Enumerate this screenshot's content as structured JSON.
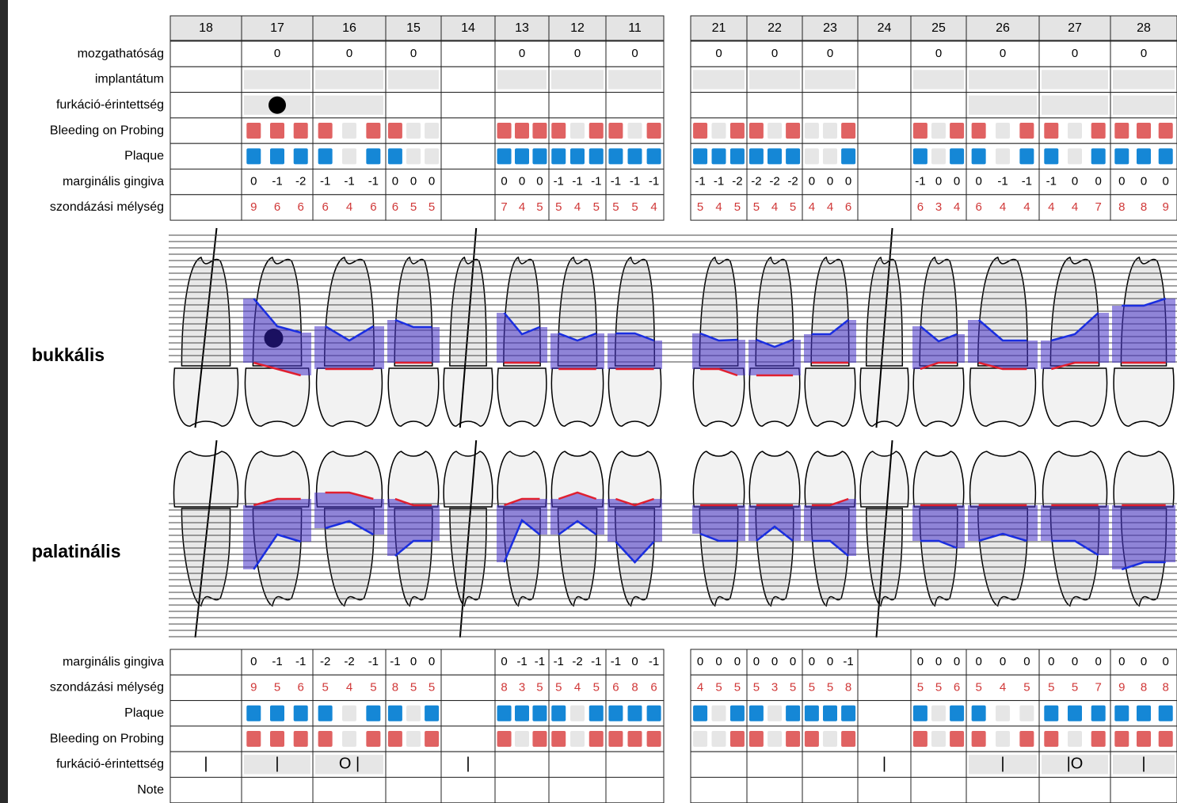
{
  "row_labels": {
    "mobility": "mozgathatóság",
    "implant": "implantátum",
    "furcation": "furkáció-érintettség",
    "bleeding": "Bleeding on Probing",
    "plaque": "Plaque",
    "gingiva": "marginális gingiva",
    "probing": "szondázási mélység",
    "note": "Note"
  },
  "side_labels": {
    "buccal": "bukkális",
    "palatal": "palatinális"
  },
  "teeth": [
    {
      "number": 18,
      "mobility": null,
      "furcation": null,
      "buccal": null,
      "palatal": {
        "furcation": "|"
      }
    },
    {
      "number": 17,
      "mobility": 0,
      "furcation": 1,
      "buccal": {
        "bleeding": [
          true,
          true,
          true
        ],
        "plaque": [
          true,
          true,
          true
        ],
        "gingiva": [
          0,
          -1,
          -2
        ],
        "probing": [
          9,
          6,
          6
        ]
      },
      "palatal": {
        "gingiva": [
          0,
          -1,
          -1
        ],
        "probing": [
          9,
          5,
          6
        ],
        "plaque": [
          true,
          true,
          true
        ],
        "bleeding": [
          true,
          true,
          true
        ],
        "furcation": "|"
      }
    },
    {
      "number": 16,
      "mobility": 0,
      "furcation": 0,
      "buccal": {
        "bleeding": [
          true,
          false,
          true
        ],
        "plaque": [
          true,
          false,
          true
        ],
        "gingiva": [
          -1,
          -1,
          -1
        ],
        "probing": [
          6,
          4,
          6
        ]
      },
      "palatal": {
        "gingiva": [
          -2,
          -2,
          -1
        ],
        "probing": [
          5,
          4,
          5
        ],
        "plaque": [
          true,
          false,
          true
        ],
        "bleeding": [
          true,
          false,
          true
        ],
        "furcation": "O |"
      }
    },
    {
      "number": 15,
      "mobility": 0,
      "furcation": null,
      "buccal": {
        "bleeding": [
          true,
          false,
          false
        ],
        "plaque": [
          true,
          false,
          false
        ],
        "gingiva": [
          0,
          0,
          0
        ],
        "probing": [
          6,
          5,
          5
        ]
      },
      "palatal": {
        "gingiva": [
          -1,
          0,
          0
        ],
        "probing": [
          8,
          5,
          5
        ],
        "plaque": [
          true,
          false,
          true
        ],
        "bleeding": [
          true,
          false,
          true
        ],
        "furcation": null
      }
    },
    {
      "number": 14,
      "mobility": null,
      "furcation": null,
      "buccal": null,
      "palatal": {
        "furcation": "|"
      }
    },
    {
      "number": 13,
      "mobility": 0,
      "furcation": null,
      "buccal": {
        "bleeding": [
          true,
          true,
          true
        ],
        "plaque": [
          true,
          true,
          true
        ],
        "gingiva": [
          0,
          0,
          0
        ],
        "probing": [
          7,
          4,
          5
        ]
      },
      "palatal": {
        "gingiva": [
          0,
          -1,
          -1
        ],
        "probing": [
          8,
          3,
          5
        ],
        "plaque": [
          true,
          true,
          true
        ],
        "bleeding": [
          true,
          false,
          true
        ],
        "furcation": null
      }
    },
    {
      "number": 12,
      "mobility": 0,
      "furcation": null,
      "buccal": {
        "bleeding": [
          true,
          false,
          true
        ],
        "plaque": [
          true,
          true,
          true
        ],
        "gingiva": [
          -1,
          -1,
          -1
        ],
        "probing": [
          5,
          4,
          5
        ]
      },
      "palatal": {
        "gingiva": [
          -1,
          -2,
          -1
        ],
        "probing": [
          5,
          4,
          5
        ],
        "plaque": [
          true,
          false,
          true
        ],
        "bleeding": [
          true,
          false,
          true
        ],
        "furcation": null
      }
    },
    {
      "number": 11,
      "mobility": 0,
      "furcation": null,
      "buccal": {
        "bleeding": [
          true,
          false,
          true
        ],
        "plaque": [
          true,
          true,
          true
        ],
        "gingiva": [
          -1,
          -1,
          -1
        ],
        "probing": [
          5,
          5,
          4
        ]
      },
      "palatal": {
        "gingiva": [
          -1,
          0,
          -1
        ],
        "probing": [
          6,
          8,
          6
        ],
        "plaque": [
          true,
          true,
          true
        ],
        "bleeding": [
          true,
          true,
          true
        ],
        "furcation": null
      }
    },
    {
      "number": 21,
      "mobility": 0,
      "furcation": null,
      "buccal": {
        "bleeding": [
          true,
          false,
          true
        ],
        "plaque": [
          true,
          true,
          true
        ],
        "gingiva": [
          -1,
          -1,
          -2
        ],
        "probing": [
          5,
          4,
          5
        ]
      },
      "palatal": {
        "gingiva": [
          0,
          0,
          0
        ],
        "probing": [
          4,
          5,
          5
        ],
        "plaque": [
          true,
          false,
          true
        ],
        "bleeding": [
          false,
          false,
          true
        ],
        "furcation": null
      }
    },
    {
      "number": 22,
      "mobility": 0,
      "furcation": null,
      "buccal": {
        "bleeding": [
          true,
          false,
          true
        ],
        "plaque": [
          true,
          true,
          true
        ],
        "gingiva": [
          -2,
          -2,
          -2
        ],
        "probing": [
          5,
          4,
          5
        ]
      },
      "palatal": {
        "gingiva": [
          0,
          0,
          0
        ],
        "probing": [
          5,
          3,
          5
        ],
        "plaque": [
          true,
          false,
          true
        ],
        "bleeding": [
          true,
          false,
          true
        ],
        "furcation": null
      }
    },
    {
      "number": 23,
      "mobility": 0,
      "furcation": null,
      "buccal": {
        "bleeding": [
          false,
          false,
          true
        ],
        "plaque": [
          false,
          false,
          true
        ],
        "gingiva": [
          0,
          0,
          0
        ],
        "probing": [
          4,
          4,
          6
        ]
      },
      "palatal": {
        "gingiva": [
          0,
          0,
          -1
        ],
        "probing": [
          5,
          5,
          8
        ],
        "plaque": [
          true,
          true,
          true
        ],
        "bleeding": [
          true,
          false,
          true
        ],
        "furcation": null
      }
    },
    {
      "number": 24,
      "mobility": null,
      "furcation": null,
      "buccal": null,
      "palatal": {
        "furcation": "|"
      }
    },
    {
      "number": 25,
      "mobility": 0,
      "furcation": null,
      "buccal": {
        "bleeding": [
          true,
          false,
          true
        ],
        "plaque": [
          true,
          false,
          true
        ],
        "gingiva": [
          -1,
          0,
          0
        ],
        "probing": [
          6,
          3,
          4
        ]
      },
      "palatal": {
        "gingiva": [
          0,
          0,
          0
        ],
        "probing": [
          5,
          5,
          6
        ],
        "plaque": [
          true,
          false,
          true
        ],
        "bleeding": [
          true,
          false,
          true
        ],
        "furcation": null
      }
    },
    {
      "number": 26,
      "mobility": 0,
      "furcation": 0,
      "buccal": {
        "bleeding": [
          true,
          false,
          true
        ],
        "plaque": [
          true,
          false,
          true
        ],
        "gingiva": [
          0,
          -1,
          -1
        ],
        "probing": [
          6,
          4,
          4
        ]
      },
      "palatal": {
        "gingiva": [
          0,
          0,
          0
        ],
        "probing": [
          5,
          4,
          5
        ],
        "plaque": [
          true,
          false,
          false
        ],
        "bleeding": [
          true,
          false,
          true
        ],
        "furcation": "|"
      }
    },
    {
      "number": 27,
      "mobility": 0,
      "furcation": 0,
      "buccal": {
        "bleeding": [
          true,
          false,
          true
        ],
        "plaque": [
          true,
          false,
          true
        ],
        "gingiva": [
          -1,
          0,
          0
        ],
        "probing": [
          4,
          4,
          7
        ]
      },
      "palatal": {
        "gingiva": [
          0,
          0,
          0
        ],
        "probing": [
          5,
          5,
          7
        ],
        "plaque": [
          true,
          true,
          true
        ],
        "bleeding": [
          true,
          false,
          true
        ],
        "furcation": "|O"
      }
    },
    {
      "number": 28,
      "mobility": 0,
      "furcation": 0,
      "buccal": {
        "bleeding": [
          true,
          true,
          true
        ],
        "plaque": [
          true,
          true,
          true
        ],
        "gingiva": [
          0,
          0,
          0
        ],
        "probing": [
          8,
          8,
          9
        ]
      },
      "palatal": {
        "gingiva": [
          0,
          0,
          0
        ],
        "probing": [
          9,
          8,
          8
        ],
        "plaque": [
          true,
          true,
          true
        ],
        "bleeding": [
          true,
          true,
          true
        ],
        "furcation": "|"
      }
    }
  ]
}
